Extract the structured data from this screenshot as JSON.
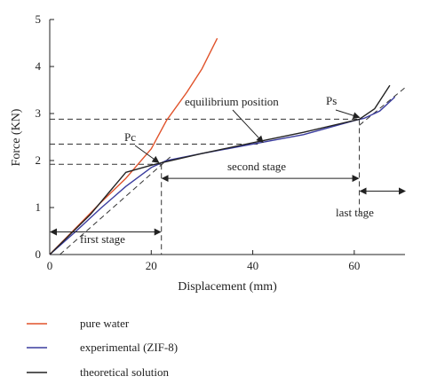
{
  "chart_data": {
    "type": "line",
    "xlabel": "Displacement (mm)",
    "ylabel": "Force (KN)",
    "xlim": [
      0,
      70
    ],
    "ylim": [
      0,
      5
    ],
    "xticks": [
      0,
      20,
      40,
      60
    ],
    "yticks": [
      0,
      1,
      2,
      3,
      4,
      5
    ],
    "grid": false,
    "legend_position": "bottom",
    "series": [
      {
        "name": "pure water",
        "color": "#e0522a",
        "points": [
          [
            0,
            0
          ],
          [
            5,
            0.55
          ],
          [
            10,
            1.1
          ],
          [
            15,
            1.62
          ],
          [
            20,
            2.25
          ],
          [
            23,
            2.85
          ],
          [
            27,
            3.45
          ],
          [
            30,
            3.95
          ],
          [
            33,
            4.6
          ]
        ]
      },
      {
        "name": "experimental (ZIF-8)",
        "color": "#3a3c9e",
        "points": [
          [
            0,
            0
          ],
          [
            5,
            0.48
          ],
          [
            10,
            0.98
          ],
          [
            15,
            1.45
          ],
          [
            20,
            1.85
          ],
          [
            23,
            2.0
          ],
          [
            30,
            2.15
          ],
          [
            40,
            2.35
          ],
          [
            50,
            2.55
          ],
          [
            60,
            2.85
          ],
          [
            62,
            2.9
          ],
          [
            65,
            3.05
          ],
          [
            68,
            3.35
          ]
        ]
      },
      {
        "name": "theoretical solution",
        "color": "#222222",
        "points": [
          [
            0,
            0
          ],
          [
            8,
            0.85
          ],
          [
            15,
            1.75
          ],
          [
            20,
            1.9
          ],
          [
            22,
            1.95
          ],
          [
            30,
            2.15
          ],
          [
            40,
            2.38
          ],
          [
            50,
            2.6
          ],
          [
            61,
            2.88
          ],
          [
            64,
            3.1
          ],
          [
            67,
            3.6
          ]
        ]
      }
    ],
    "annotations": {
      "first_stage": "first stage",
      "second_stage": "second stage",
      "last_tage": "last tage",
      "pc": "Pc",
      "ps": "Ps",
      "equilibrium_position": "equilibrium position"
    },
    "reference_lines": {
      "pc_x": 22,
      "ps_x": 61,
      "pc_y": 1.92,
      "eq_y": 2.35,
      "ps_y": 2.88
    }
  }
}
